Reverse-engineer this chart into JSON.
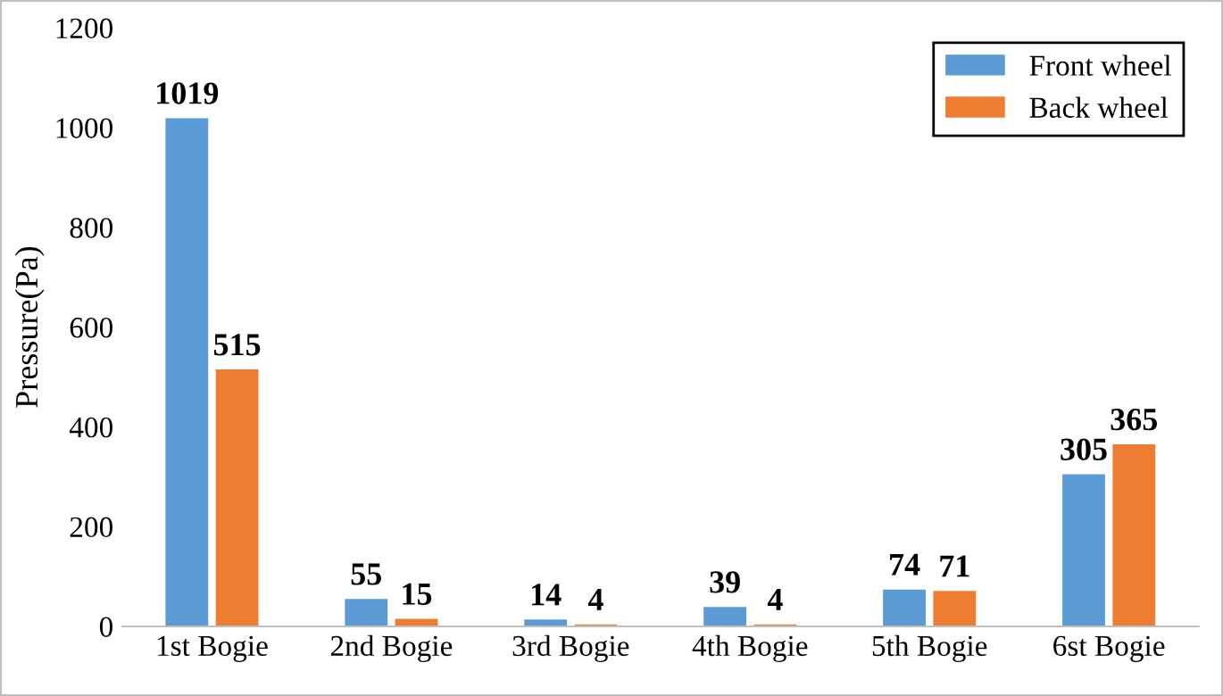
{
  "chart_data": {
    "type": "bar",
    "ylabel": "Pressure(Pa)",
    "categories": [
      "1st Bogie",
      "2nd Bogie",
      "3rd Bogie",
      "4th Bogie",
      "5th Bogie",
      "6st Bogie"
    ],
    "series": [
      {
        "name": "Front wheel",
        "color": "#5b9bd5",
        "values": [
          1019,
          55,
          14,
          39,
          74,
          305
        ]
      },
      {
        "name": "Back wheel",
        "color": "#ed7d31",
        "values": [
          515,
          15,
          4,
          4,
          71,
          365
        ]
      }
    ],
    "ylim": [
      0,
      1200
    ],
    "yticks": [
      0,
      200,
      400,
      600,
      800,
      1000,
      1200
    ],
    "grid": false,
    "legend": "top right",
    "data_labels": true
  }
}
